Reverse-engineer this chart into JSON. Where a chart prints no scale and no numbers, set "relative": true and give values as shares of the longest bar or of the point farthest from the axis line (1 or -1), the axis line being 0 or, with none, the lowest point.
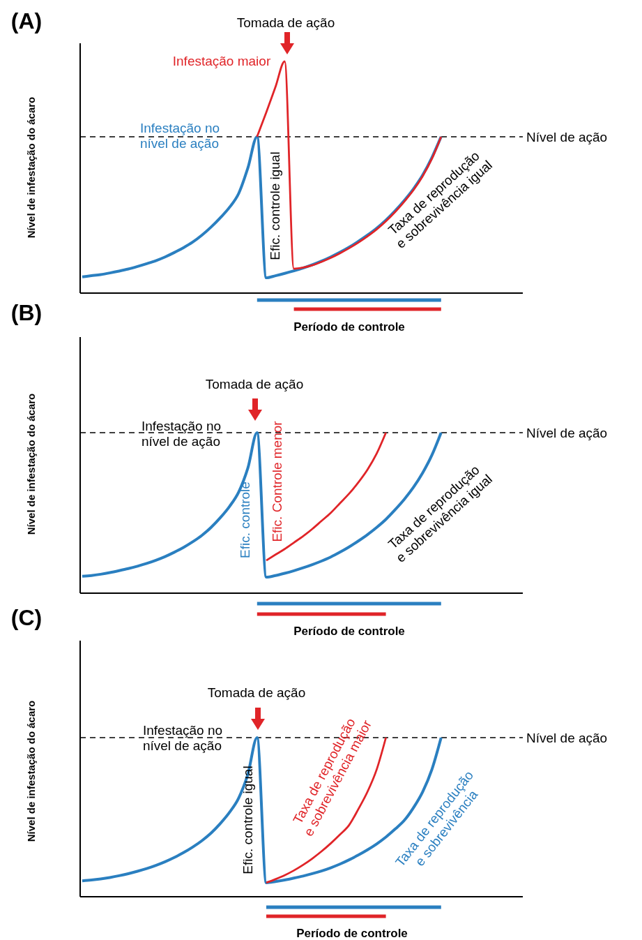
{
  "chart_data": [
    {
      "type": "line",
      "relative": true,
      "title": "(A)",
      "xlabel": "Período de controle",
      "ylabel": "Nível de infestação do ácaro",
      "categories": [
        null,
        null,
        null,
        null,
        null,
        null,
        null,
        null,
        null,
        null,
        null,
        null,
        null,
        null,
        null,
        null,
        null,
        null,
        null,
        null,
        null,
        null,
        null,
        null,
        null,
        null,
        null,
        null,
        null,
        null,
        null,
        null,
        null,
        null,
        null,
        null,
        null,
        null,
        null,
        null,
        null,
        null,
        null,
        null,
        null,
        null,
        null,
        null
      ],
      "series": [
        {
          "color": "#2a7fc0",
          "values": [
            0.07,
            0.075,
            0.08,
            0.087,
            0.095,
            0.104,
            0.115,
            0.127,
            0.14,
            0.156,
            0.175,
            0.196,
            0.22,
            0.25,
            0.285,
            0.325,
            0.37,
            0.43,
            0.54,
            0.675,
            0.066,
            0.075,
            0.085,
            0.096,
            0.108,
            0.122,
            0.138,
            0.156,
            0.176,
            0.198,
            0.223,
            0.25,
            0.28,
            0.315,
            0.355,
            0.4,
            0.45,
            0.51,
            0.585,
            0.675,
            null,
            null,
            null,
            null,
            null,
            null,
            null,
            null
          ]
        },
        {
          "color": "#e02428",
          "values": [
            null,
            null,
            null,
            null,
            null,
            null,
            null,
            null,
            null,
            null,
            null,
            null,
            null,
            null,
            null,
            null,
            null,
            null,
            null,
            0.675,
            0.78,
            0.89,
            1,
            0.105,
            0.11,
            0.12,
            0.135,
            0.152,
            0.172,
            0.194,
            0.218,
            0.245,
            0.275,
            0.31,
            0.35,
            0.395,
            0.445,
            0.505,
            0.58,
            0.675,
            null,
            null,
            null,
            null,
            null,
            null,
            null,
            null
          ]
        },
        {
          "color": "#2a7fc0",
          "values": [
            null,
            null,
            null,
            null,
            null,
            null,
            null,
            null,
            null,
            null,
            null,
            null,
            null,
            null,
            null,
            null,
            null,
            null,
            null,
            -0.03,
            -0.03,
            -0.03,
            -0.03,
            -0.03,
            -0.03,
            -0.03,
            -0.03,
            -0.03,
            -0.03,
            -0.03,
            -0.03,
            -0.03,
            -0.03,
            -0.03,
            -0.03,
            -0.03,
            -0.03,
            -0.03,
            -0.03,
            -0.03,
            null,
            null,
            null,
            null,
            null,
            null,
            null,
            null
          ]
        },
        {
          "color": "#e02428",
          "values": [
            null,
            null,
            null,
            null,
            null,
            null,
            null,
            null,
            null,
            null,
            null,
            null,
            null,
            null,
            null,
            null,
            null,
            null,
            null,
            null,
            null,
            null,
            null,
            -0.069,
            -0.069,
            -0.069,
            -0.069,
            -0.069,
            -0.069,
            -0.069,
            -0.069,
            -0.069,
            -0.069,
            -0.069,
            -0.069,
            -0.069,
            -0.069,
            -0.069,
            -0.069,
            -0.069,
            null,
            null,
            null,
            null,
            null,
            null,
            null,
            null
          ]
        }
      ],
      "ref_lines": [
        {
          "axis": "y",
          "value": 0.675,
          "label": "Nível de ação",
          "line_style": "dashed"
        }
      ],
      "annotations": [
        "Tomada de ação",
        "Infestação maior",
        "Infestação no\nnível de ação",
        "Efic. controle igual",
        "Taxa de reprodução\ne sobrevivência igual"
      ]
    },
    {
      "type": "line",
      "relative": true,
      "title": "(B)",
      "xlabel": "Período de controle",
      "ylabel": "Nível de infestação do ácaro",
      "categories": [
        null,
        null,
        null,
        null,
        null,
        null,
        null,
        null,
        null,
        null,
        null,
        null,
        null,
        null,
        null,
        null,
        null,
        null,
        null,
        null,
        null,
        null,
        null,
        null,
        null,
        null,
        null,
        null,
        null,
        null,
        null,
        null,
        null,
        null,
        null,
        null,
        null,
        null,
        null,
        null,
        null,
        null,
        null,
        null,
        null,
        null,
        null,
        null
      ],
      "series": [
        {
          "color": "#2a7fc0",
          "values": [
            0.105,
            0.11,
            0.118,
            0.128,
            0.14,
            0.153,
            0.168,
            0.185,
            0.205,
            0.228,
            0.255,
            0.285,
            0.32,
            0.36,
            0.41,
            0.47,
            0.54,
            0.63,
            0.78,
            1,
            0.1,
            0.11,
            0.124,
            0.14,
            0.158,
            0.178,
            0.2,
            0.225,
            0.255,
            0.288,
            0.325,
            0.365,
            0.41,
            0.46,
            0.52,
            0.585,
            0.66,
            0.75,
            0.86,
            1,
            null,
            null,
            null,
            null,
            null,
            null,
            null,
            null
          ]
        },
        {
          "color": "#e02428",
          "values": [
            null,
            null,
            null,
            null,
            null,
            null,
            null,
            null,
            null,
            null,
            null,
            null,
            null,
            null,
            null,
            null,
            null,
            null,
            null,
            null,
            0.204,
            0.24,
            0.275,
            0.315,
            0.355,
            0.4,
            0.45,
            0.5,
            0.56,
            0.62,
            0.69,
            0.77,
            0.87,
            1,
            null,
            null,
            null,
            null,
            null,
            null,
            null,
            null,
            null,
            null,
            null,
            null,
            null,
            null
          ]
        },
        {
          "color": "#2a7fc0",
          "values": [
            null,
            null,
            null,
            null,
            null,
            null,
            null,
            null,
            null,
            null,
            null,
            null,
            null,
            null,
            null,
            null,
            null,
            null,
            null,
            -0.065,
            -0.065,
            -0.065,
            -0.065,
            -0.065,
            -0.065,
            -0.065,
            -0.065,
            -0.065,
            -0.065,
            -0.065,
            -0.065,
            -0.065,
            -0.065,
            -0.065,
            -0.065,
            -0.065,
            -0.065,
            -0.065,
            -0.065,
            -0.065,
            null,
            null,
            null,
            null,
            null,
            null,
            null,
            null
          ]
        },
        {
          "color": "#e02428",
          "values": [
            null,
            null,
            null,
            null,
            null,
            null,
            null,
            null,
            null,
            null,
            null,
            null,
            null,
            null,
            null,
            null,
            null,
            null,
            null,
            -0.13,
            -0.13,
            -0.13,
            -0.13,
            -0.13,
            -0.13,
            -0.13,
            -0.13,
            -0.13,
            -0.13,
            -0.13,
            -0.13,
            -0.13,
            -0.13,
            -0.13,
            null,
            null,
            null,
            null,
            null,
            null,
            null,
            null,
            null,
            null,
            null,
            null,
            null,
            null
          ]
        }
      ],
      "ref_lines": [
        {
          "axis": "y",
          "value": 1,
          "label": "Nível de ação",
          "line_style": "dashed"
        }
      ],
      "annotations": [
        "Tomada de ação",
        "Infestação no\nnível de ação",
        "Efic. controle",
        "Efic. Controle menor",
        "Taxa de reprodução\ne sobrevivência igual"
      ]
    },
    {
      "type": "line",
      "relative": true,
      "title": "(C)",
      "xlabel": "Período de controle",
      "ylabel": "Nível de infestação do ácaro",
      "categories": [
        null,
        null,
        null,
        null,
        null,
        null,
        null,
        null,
        null,
        null,
        null,
        null,
        null,
        null,
        null,
        null,
        null,
        null,
        null,
        null,
        null,
        null,
        null,
        null,
        null,
        null,
        null,
        null,
        null,
        null,
        null,
        null,
        null,
        null,
        null,
        null,
        null,
        null,
        null,
        null,
        null,
        null,
        null,
        null,
        null,
        null,
        null,
        null
      ],
      "series": [
        {
          "color": "#2a7fc0",
          "values": [
            0.1,
            0.105,
            0.112,
            0.121,
            0.132,
            0.145,
            0.16,
            0.177,
            0.197,
            0.22,
            0.247,
            0.277,
            0.312,
            0.352,
            0.4,
            0.46,
            0.53,
            0.62,
            0.77,
            1,
            0.088,
            0.095,
            0.105,
            0.117,
            0.13,
            0.145,
            0.162,
            0.182,
            0.205,
            0.232,
            0.262,
            0.295,
            0.332,
            0.375,
            0.425,
            0.48,
            0.56,
            0.66,
            0.8,
            1,
            null,
            null,
            null,
            null,
            null,
            null,
            null,
            null
          ]
        },
        {
          "color": "#e02428",
          "values": [
            null,
            null,
            null,
            null,
            null,
            null,
            null,
            null,
            null,
            null,
            null,
            null,
            null,
            null,
            null,
            null,
            null,
            null,
            null,
            null,
            0.088,
            0.11,
            0.135,
            0.165,
            0.2,
            0.24,
            0.285,
            0.335,
            0.39,
            0.45,
            0.55,
            0.66,
            0.8,
            1,
            null,
            null,
            null,
            null,
            null,
            null,
            null,
            null,
            null,
            null,
            null,
            null,
            null,
            null
          ]
        },
        {
          "color": "#2a7fc0",
          "values": [
            null,
            null,
            null,
            null,
            null,
            null,
            null,
            null,
            null,
            null,
            null,
            null,
            null,
            null,
            null,
            null,
            null,
            null,
            null,
            null,
            -0.066,
            -0.066,
            -0.066,
            -0.066,
            -0.066,
            -0.066,
            -0.066,
            -0.066,
            -0.066,
            -0.066,
            -0.066,
            -0.066,
            -0.066,
            -0.066,
            -0.066,
            -0.066,
            -0.066,
            -0.066,
            -0.066,
            -0.066,
            null,
            null,
            null,
            null,
            null,
            null,
            null,
            null
          ]
        },
        {
          "color": "#e02428",
          "values": [
            null,
            null,
            null,
            null,
            null,
            null,
            null,
            null,
            null,
            null,
            null,
            null,
            null,
            null,
            null,
            null,
            null,
            null,
            null,
            null,
            -0.123,
            -0.123,
            -0.123,
            -0.123,
            -0.123,
            -0.123,
            -0.123,
            -0.123,
            -0.123,
            -0.123,
            -0.123,
            -0.123,
            -0.123,
            -0.123,
            null,
            null,
            null,
            null,
            null,
            null,
            null,
            null,
            null,
            null,
            null,
            null,
            null,
            null
          ]
        }
      ],
      "ref_lines": [
        {
          "axis": "y",
          "value": 1,
          "label": "Nível de ação",
          "line_style": "dashed"
        }
      ],
      "annotations": [
        "Tomada de ação",
        "Infestação no\nnível de ação",
        "Efic. controle igual",
        "Taxa de reprodução\ne sobrevivência maior",
        "Taxa de reprodução\ne sobrevivência"
      ]
    }
  ]
}
